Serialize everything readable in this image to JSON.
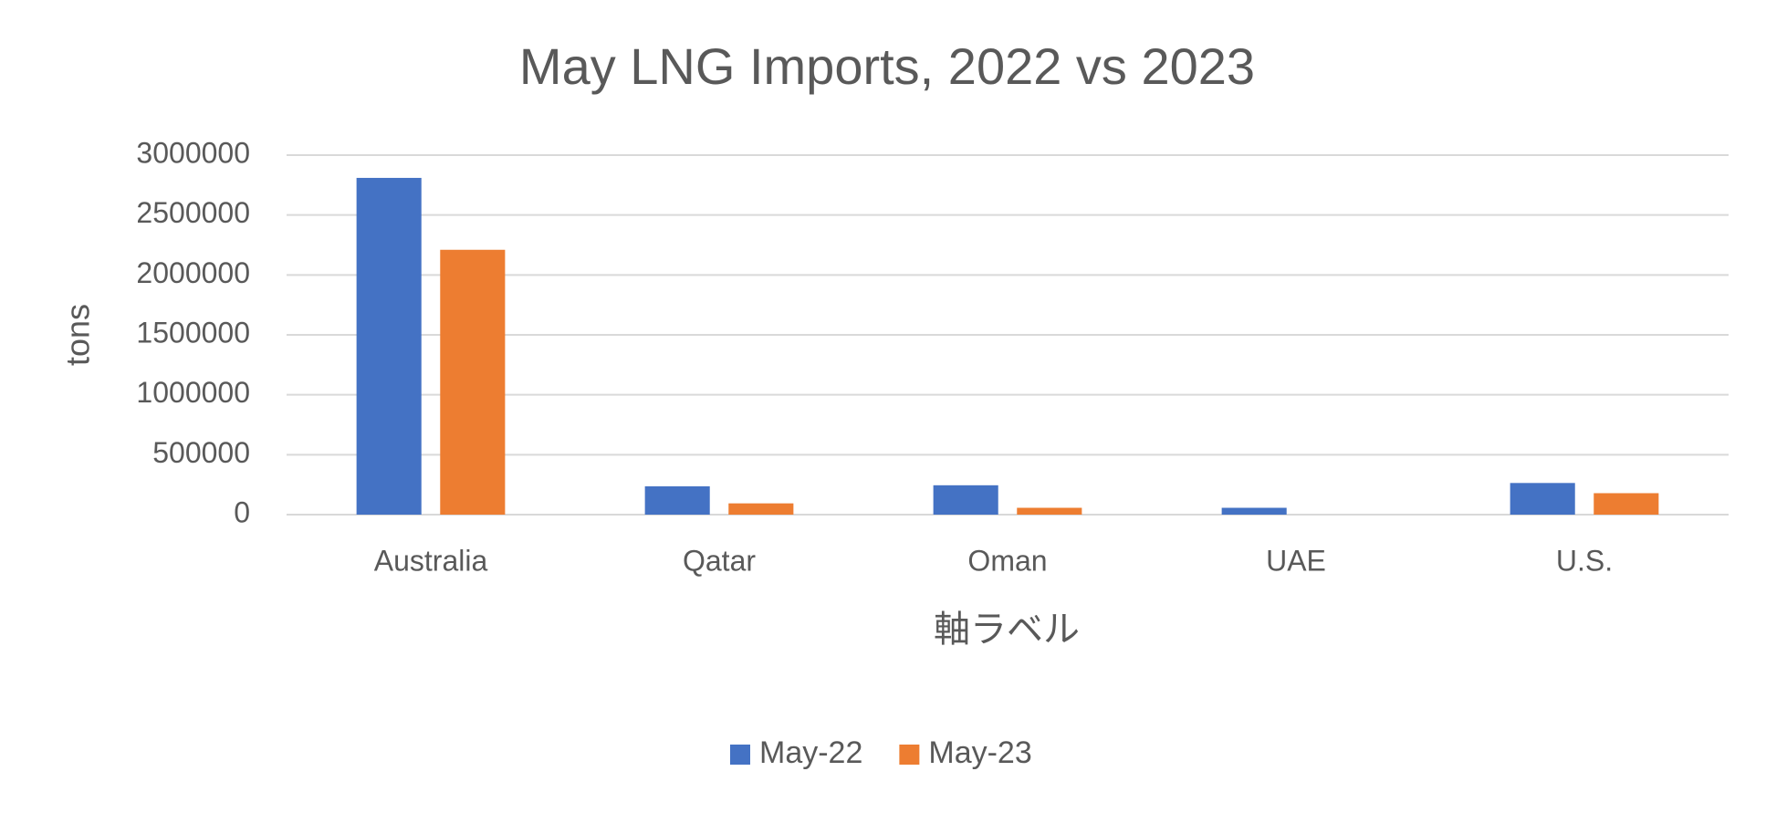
{
  "chart_data": {
    "type": "bar",
    "title": "May LNG Imports, 2022 vs 2023",
    "x_label": "軸ラベル",
    "y_label": "tons",
    "categories": [
      "Australia",
      "Qatar",
      "Oman",
      "UAE",
      "U.S."
    ],
    "series": [
      {
        "name": "May-22",
        "color": "#4472c4",
        "values": [
          2810000,
          236000,
          245000,
          57000,
          264000
        ]
      },
      {
        "name": "May-23",
        "color": "#ed7d31",
        "values": [
          2210000,
          94000,
          57000,
          0,
          179000
        ]
      }
    ],
    "ylim": [
      0,
      3000000
    ],
    "yticks": [
      0,
      500000,
      1000000,
      1500000,
      2000000,
      2500000,
      3000000
    ],
    "grid": true,
    "legend": "bottom"
  }
}
